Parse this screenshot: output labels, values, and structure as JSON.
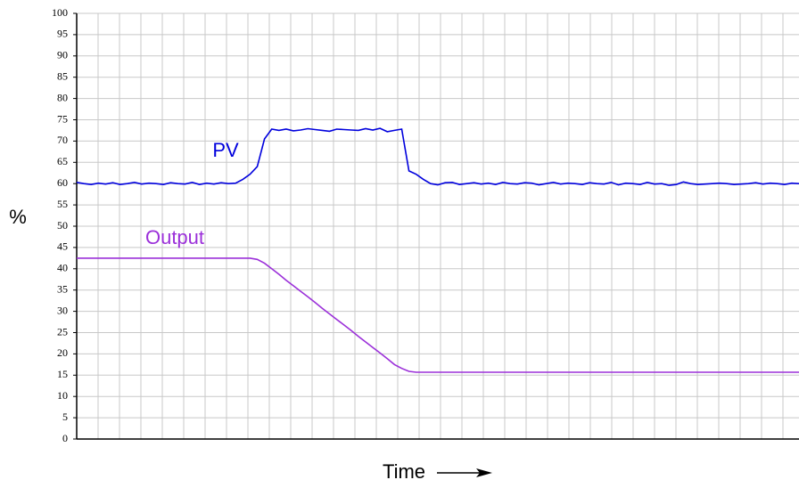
{
  "chart_data": {
    "type": "line",
    "ylabel": "%",
    "xlabel": "Time",
    "ylim": [
      0,
      100
    ],
    "yticks": [
      0,
      5,
      10,
      15,
      20,
      25,
      30,
      35,
      40,
      45,
      50,
      55,
      60,
      65,
      70,
      75,
      80,
      85,
      90,
      95,
      100
    ],
    "grid": true,
    "series": [
      {
        "name": "PV",
        "color": "#0000dd",
        "values": [
          60.3,
          60,
          59.8,
          60.1,
          59.9,
          60.2,
          59.8,
          60,
          60.3,
          59.9,
          60.1,
          60,
          59.8,
          60.2,
          60,
          59.9,
          60.3,
          59.8,
          60.1,
          59.9,
          60.2,
          60,
          60.1,
          61,
          62.2,
          64,
          70.5,
          72.8,
          72.5,
          72.8,
          72.4,
          72.6,
          72.9,
          72.7,
          72.5,
          72.3,
          72.8,
          72.7,
          72.6,
          72.5,
          72.9,
          72.6,
          73,
          72.2,
          72.5,
          72.8,
          63,
          62.2,
          61,
          60,
          59.7,
          60.2,
          60.3,
          59.8,
          60,
          60.2,
          59.9,
          60.1,
          59.8,
          60.3,
          60,
          59.9,
          60.2,
          60.1,
          59.7,
          60,
          60.3,
          59.9,
          60.1,
          60,
          59.8,
          60.2,
          60,
          59.9,
          60.3,
          59.7,
          60.1,
          60,
          59.8,
          60.3,
          59.9,
          60,
          59.6,
          59.8,
          60.4,
          60,
          59.8,
          59.9,
          60,
          60.1,
          60,
          59.8,
          59.9,
          60,
          60.2,
          59.9,
          60.1,
          60,
          59.8,
          60.1,
          60
        ]
      },
      {
        "name": "Output",
        "color": "#9b30d9",
        "values": [
          42.5,
          42.5,
          42.5,
          42.5,
          42.5,
          42.5,
          42.5,
          42.5,
          42.5,
          42.5,
          42.5,
          42.5,
          42.5,
          42.5,
          42.5,
          42.5,
          42.5,
          42.5,
          42.5,
          42.5,
          42.5,
          42.5,
          42.5,
          42.5,
          42.5,
          42.2,
          41.3,
          40,
          38.7,
          37.3,
          36,
          34.7,
          33.4,
          32.1,
          30.7,
          29.4,
          28.1,
          26.8,
          25.5,
          24.1,
          22.8,
          21.5,
          20.2,
          18.9,
          17.5,
          16.6,
          15.9,
          15.7,
          15.7,
          15.7,
          15.7,
          15.7,
          15.7,
          15.7,
          15.7,
          15.7,
          15.7,
          15.7,
          15.7,
          15.7,
          15.7,
          15.7,
          15.7,
          15.7,
          15.7,
          15.7,
          15.7,
          15.7,
          15.7,
          15.7,
          15.7,
          15.7,
          15.7,
          15.7,
          15.7,
          15.7,
          15.7,
          15.7,
          15.7,
          15.7,
          15.7,
          15.7,
          15.7,
          15.7,
          15.7,
          15.7,
          15.7,
          15.7,
          15.7,
          15.7,
          15.7,
          15.7,
          15.7,
          15.7,
          15.7,
          15.7,
          15.7,
          15.7,
          15.7,
          15.7,
          15.7
        ]
      }
    ]
  }
}
